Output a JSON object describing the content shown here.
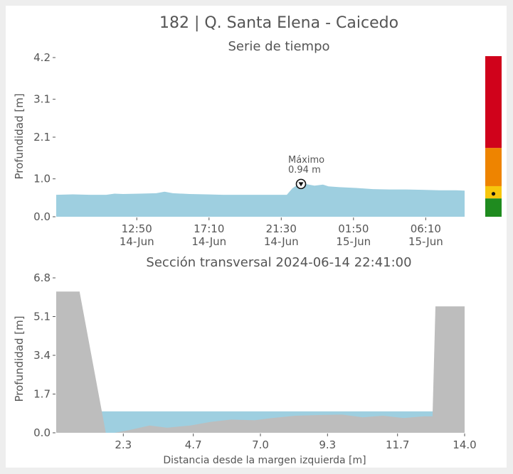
{
  "colors": {
    "water": "#9ecfe0",
    "terrain": "#bdbdbd",
    "text": "#555555",
    "alert_red": "#d0021b",
    "alert_orange": "#ee8400",
    "alert_yellow": "#f7c60c",
    "alert_green": "#1f8b1f"
  },
  "figure": {
    "title": "182 | Q. Santa Elena - Caicedo"
  },
  "chart_data": [
    {
      "type": "area",
      "title": "Serie de tiempo",
      "ylabel": "Profundidad [m]",
      "xlabel": "",
      "ylim": [
        0.0,
        4.2
      ],
      "yticks": [
        0.0,
        1.0,
        2.1,
        3.1,
        4.2
      ],
      "ytick_labels": [
        "0.0",
        "1.0",
        "2.1",
        "3.1",
        "4.2"
      ],
      "xlim": [
        "2024-06-14T08:00",
        "2024-06-15T08:30"
      ],
      "xticks": [
        "2024-06-14T12:50",
        "2024-06-14T17:10",
        "2024-06-14T21:30",
        "2024-06-15T01:50",
        "2024-06-15T06:10"
      ],
      "xtick_labels": [
        [
          "12:50",
          "14-Jun"
        ],
        [
          "17:10",
          "14-Jun"
        ],
        [
          "21:30",
          "14-Jun"
        ],
        [
          "01:50",
          "15-Jun"
        ],
        [
          "06:10",
          "15-Jun"
        ]
      ],
      "series": [
        {
          "x": [
            "2024-06-14T08:00",
            "2024-06-14T09:00",
            "2024-06-14T10:00",
            "2024-06-14T11:00",
            "2024-06-14T11:30",
            "2024-06-14T12:00",
            "2024-06-14T13:00",
            "2024-06-14T14:00",
            "2024-06-14T14:30",
            "2024-06-14T15:00",
            "2024-06-14T16:00",
            "2024-06-14T17:00",
            "2024-06-14T18:00",
            "2024-06-14T19:00",
            "2024-06-14T20:00",
            "2024-06-14T21:00",
            "2024-06-14T21:50",
            "2024-06-14T22:10",
            "2024-06-14T22:30",
            "2024-06-14T22:41",
            "2024-06-14T23:00",
            "2024-06-14T23:30",
            "2024-06-15T00:00",
            "2024-06-15T00:20",
            "2024-06-15T01:00",
            "2024-06-15T02:00",
            "2024-06-15T03:00",
            "2024-06-15T04:00",
            "2024-06-15T05:00",
            "2024-06-15T06:00",
            "2024-06-15T07:00",
            "2024-06-15T08:00",
            "2024-06-15T08:30"
          ],
          "y": [
            0.58,
            0.59,
            0.58,
            0.58,
            0.61,
            0.6,
            0.61,
            0.62,
            0.66,
            0.62,
            0.6,
            0.59,
            0.58,
            0.58,
            0.58,
            0.58,
            0.58,
            0.75,
            0.85,
            0.94,
            0.86,
            0.82,
            0.85,
            0.8,
            0.78,
            0.76,
            0.73,
            0.72,
            0.72,
            0.71,
            0.7,
            0.7,
            0.69
          ]
        }
      ],
      "annotation": {
        "x": "2024-06-14T22:41",
        "y": 0.94,
        "label_line1": "Máximo",
        "label_line2": "0.94 m"
      }
    },
    {
      "type": "area",
      "title": "Sección transversal 2024-06-14 22:41:00",
      "xlabel": "Distancia desde la margen izquierda [m]",
      "ylabel": "Profundidad [m]",
      "xlim": [
        0.0,
        14.0
      ],
      "ylim": [
        0.0,
        6.8
      ],
      "xticks": [
        2.3,
        4.7,
        7.0,
        9.3,
        11.7,
        14.0
      ],
      "xtick_labels": [
        "2.3",
        "4.7",
        "7.0",
        "9.3",
        "11.7",
        "14.0"
      ],
      "yticks": [
        0.0,
        1.7,
        3.4,
        5.1,
        6.8
      ],
      "ytick_labels": [
        "0.0",
        "1.7",
        "3.4",
        "5.1",
        "6.8"
      ],
      "water_level": 0.94,
      "terrain": {
        "x": [
          0.0,
          0.8,
          1.7,
          2.0,
          2.5,
          3.2,
          3.8,
          4.6,
          5.3,
          6.0,
          6.8,
          7.4,
          8.2,
          9.0,
          9.8,
          10.5,
          11.2,
          11.9,
          12.6,
          12.9,
          13.0,
          14.0
        ],
        "y": [
          6.2,
          6.2,
          0.0,
          0.0,
          0.12,
          0.32,
          0.22,
          0.32,
          0.48,
          0.58,
          0.55,
          0.65,
          0.75,
          0.78,
          0.8,
          0.68,
          0.75,
          0.65,
          0.72,
          0.72,
          5.55,
          5.55
        ]
      }
    }
  ],
  "alert_bar": {
    "bands": [
      {
        "from": 0.0,
        "to": 1.2,
        "color": "#1f8b1f"
      },
      {
        "from": 1.2,
        "to": 2.0,
        "color": "#f7c60c"
      },
      {
        "from": 2.0,
        "to": 4.5,
        "color": "#ee8400"
      },
      {
        "from": 4.5,
        "to": 10.5,
        "color": "#d0021b"
      }
    ],
    "max": 10.5,
    "current": 1.5
  }
}
